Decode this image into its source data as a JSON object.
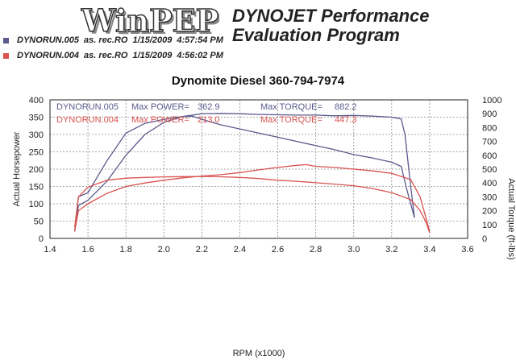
{
  "header": {
    "logo_text": "WinPEP",
    "title_line1": "DYNOJET Performance",
    "title_line2": "Evaluation Program"
  },
  "runs": [
    {
      "name": "DYNORUN.005",
      "info": "as. rec.RO",
      "date": "1/15/2009",
      "time": "4:57:54 PM",
      "color": "#5a5a8c"
    },
    {
      "name": "DYNORUN.004",
      "info": "as. rec.RO",
      "date": "1/15/2009",
      "time": "4:56:02 PM",
      "color": "#d9534f"
    }
  ],
  "chart_data": {
    "type": "line",
    "title": "Dynomite Diesel 360-794-7974",
    "xlabel": "RPM (x1000)",
    "ylabel_left": "Actual Horsepower",
    "ylabel_right": "Actual Torque (ft-lbs)",
    "xlim": [
      1.4,
      3.6
    ],
    "ylim_left": [
      0,
      400
    ],
    "ylim_right": [
      0,
      1000
    ],
    "x_ticks": [
      "1.4",
      "1.6",
      "1.8",
      "2.0",
      "2.2",
      "2.4",
      "2.6",
      "2.8",
      "3.0",
      "3.2",
      "3.4",
      "3.6"
    ],
    "y_ticks_left": [
      "0",
      "50",
      "100",
      "150",
      "200",
      "250",
      "300",
      "350",
      "400"
    ],
    "y_ticks_right": [
      "0",
      "100",
      "200",
      "300",
      "400",
      "500",
      "600",
      "700",
      "800",
      "900",
      "1000"
    ],
    "grid": true,
    "annotations": [
      {
        "run": "DYNORUN.005",
        "power_label": "Max POWER=",
        "power": "362.9",
        "torque_label": "Max TORQUE=",
        "torque": "882.2",
        "color": "#5a5a8c"
      },
      {
        "run": "DYNORUN.004",
        "power_label": "Max POWER=",
        "power": "213.0",
        "torque_label": "Max TORQUE=",
        "torque": "447.3",
        "color": "#d9534f"
      }
    ],
    "series": [
      {
        "name": "DYNORUN.005",
        "measure": "power",
        "axis": "left",
        "color": "#5a5a8c",
        "x": [
          1.53,
          1.55,
          1.6,
          1.7,
          1.8,
          1.9,
          2.0,
          2.1,
          2.2,
          2.3,
          2.4,
          2.5,
          2.6,
          2.7,
          2.8,
          2.9,
          3.0,
          3.1,
          3.2,
          3.25,
          3.27,
          3.3,
          3.32
        ],
        "y": [
          20,
          95,
          110,
          165,
          240,
          300,
          335,
          352,
          360,
          361,
          360,
          358,
          357,
          356,
          356,
          354,
          355,
          353,
          350,
          345,
          300,
          150,
          60
        ]
      },
      {
        "name": "DYNORUN.005",
        "measure": "torque",
        "axis": "right",
        "color": "#5a5a8c",
        "x": [
          1.53,
          1.55,
          1.6,
          1.7,
          1.8,
          1.9,
          2.0,
          2.1,
          2.15,
          2.2,
          2.3,
          2.4,
          2.5,
          2.6,
          2.7,
          2.8,
          2.9,
          3.0,
          3.1,
          3.2,
          3.25,
          3.28,
          3.32
        ],
        "y": [
          50,
          300,
          330,
          560,
          760,
          830,
          860,
          880,
          882,
          860,
          820,
          790,
          760,
          730,
          700,
          670,
          640,
          605,
          580,
          550,
          520,
          350,
          150
        ]
      },
      {
        "name": "DYNORUN.004",
        "measure": "power",
        "axis": "left",
        "color": "#d9534f",
        "x": [
          1.53,
          1.55,
          1.6,
          1.7,
          1.8,
          1.9,
          2.0,
          2.1,
          2.2,
          2.3,
          2.4,
          2.5,
          2.6,
          2.7,
          2.75,
          2.8,
          2.9,
          3.0,
          3.1,
          3.2,
          3.3,
          3.35,
          3.38,
          3.4
        ],
        "y": [
          20,
          80,
          100,
          130,
          150,
          160,
          168,
          175,
          180,
          184,
          190,
          198,
          205,
          211,
          213,
          208,
          205,
          200,
          195,
          188,
          170,
          120,
          60,
          20
        ]
      },
      {
        "name": "DYNORUN.004",
        "measure": "torque",
        "axis": "right",
        "color": "#d9534f",
        "x": [
          1.53,
          1.55,
          1.6,
          1.7,
          1.8,
          1.9,
          2.0,
          2.1,
          2.2,
          2.3,
          2.4,
          2.5,
          2.6,
          2.7,
          2.8,
          2.9,
          3.0,
          3.1,
          3.2,
          3.3,
          3.35,
          3.38,
          3.4
        ],
        "y": [
          80,
          300,
          370,
          420,
          435,
          440,
          444,
          446,
          447,
          445,
          440,
          432,
          420,
          412,
          402,
          392,
          380,
          360,
          330,
          280,
          200,
          120,
          40
        ]
      }
    ]
  }
}
